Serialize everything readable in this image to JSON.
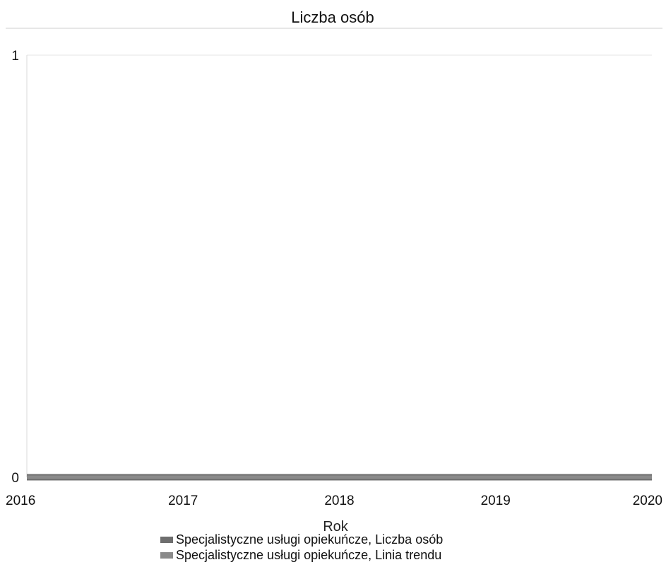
{
  "chart_data": {
    "type": "line",
    "title": "Liczba osób",
    "xlabel": "Rok",
    "ylabel": "",
    "x": [
      2016,
      2017,
      2018,
      2019,
      2020
    ],
    "x_tick_labels": [
      "2016",
      "2017",
      "2018",
      "2019",
      "2020"
    ],
    "y_tick_labels": [
      "0",
      "1"
    ],
    "ylim": [
      0,
      1
    ],
    "xlim": [
      2016,
      2020
    ],
    "grid": "horizontal",
    "legend_position": "bottom",
    "series": [
      {
        "name": "Specjalistyczne usługi opiekuńcze, Liczba osób",
        "values": [
          0,
          0,
          0,
          0,
          0
        ],
        "color": "#6e6e6e"
      },
      {
        "name": "Specjalistyczne usługi opiekuńcze, Linia trendu",
        "values": [
          0,
          0,
          0,
          0,
          0
        ],
        "color": "#8a8a8a"
      }
    ]
  }
}
